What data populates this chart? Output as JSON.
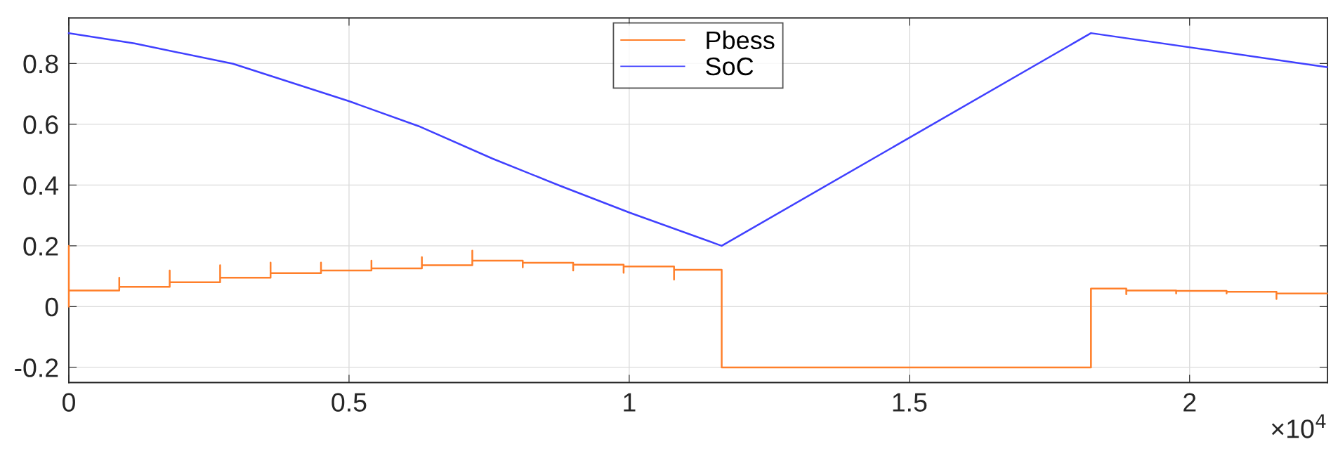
{
  "chart_data": {
    "type": "line",
    "xlim": [
      0,
      2.246
    ],
    "ylim": [
      -0.25,
      0.95
    ],
    "xticks": [
      0,
      0.5,
      1,
      1.5,
      2
    ],
    "yticks": [
      -0.2,
      0,
      0.2,
      0.4,
      0.6,
      0.8
    ],
    "annotations": [
      "×10$^{4}$"
    ],
    "grid": true,
    "legend": "top",
    "series": [
      {
        "name": "Pbess",
        "color": "#ff7f2a",
        "x": [
          0,
          0,
          0,
          0.09,
          0.09,
          0.09,
          0.18,
          0.18,
          0.18,
          0.27,
          0.27,
          0.27,
          0.36,
          0.36,
          0.36,
          0.45,
          0.45,
          0.45,
          0.54,
          0.54,
          0.54,
          0.63,
          0.63,
          0.63,
          0.72,
          0.72,
          0.72,
          0.81,
          0.81,
          0.81,
          0.9,
          0.9,
          0.9,
          0.99,
          0.99,
          0.99,
          1.08,
          1.08,
          1.08,
          1.165,
          1.165,
          1.824,
          1.824,
          1.887,
          1.887,
          1.887,
          1.976,
          1.976,
          1.976,
          2.066,
          2.066,
          2.066,
          2.155,
          2.155,
          2.155,
          2.245
        ],
        "values": [
          0,
          0.2,
          0.053,
          0.053,
          0.095,
          0.065,
          0.065,
          0.119,
          0.08,
          0.08,
          0.136,
          0.095,
          0.095,
          0.145,
          0.11,
          0.11,
          0.145,
          0.119,
          0.119,
          0.151,
          0.126,
          0.126,
          0.163,
          0.136,
          0.136,
          0.184,
          0.151,
          0.151,
          0.129,
          0.144,
          0.144,
          0.119,
          0.138,
          0.138,
          0.111,
          0.132,
          0.132,
          0.089,
          0.121,
          0.121,
          -0.2,
          -0.2,
          0.059,
          0.059,
          0.041,
          0.053,
          0.053,
          0.043,
          0.052,
          0.052,
          0.043,
          0.049,
          0.049,
          0.025,
          0.043,
          0.043
        ]
      },
      {
        "name": "SoC",
        "color": "#4040ff",
        "x": [
          0,
          0.117,
          0.293,
          0.5,
          0.624,
          0.756,
          0.876,
          1.001,
          1.165,
          1.824,
          2.245
        ],
        "values": [
          0.9,
          0.866,
          0.799,
          0.676,
          0.594,
          0.487,
          0.398,
          0.309,
          0.2,
          0.9,
          0.788
        ]
      }
    ]
  }
}
